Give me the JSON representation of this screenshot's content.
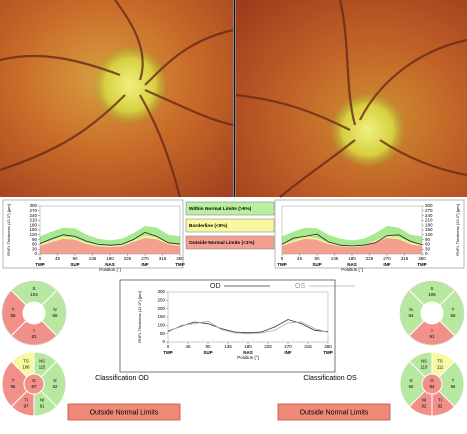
{
  "chart_data": [
    {
      "type": "line",
      "ylabel": "RNFL Thickness (12.0°) [µm]",
      "xlabel": "Position [°]",
      "x": [
        0,
        30,
        60,
        90,
        120,
        150,
        180,
        210,
        240,
        270,
        300,
        330,
        360
      ],
      "xlim": [
        0,
        360
      ],
      "xticks": [
        0,
        45,
        90,
        135,
        180,
        225,
        270,
        315,
        360
      ],
      "xregions": [
        {
          "value": 0,
          "label": "TMP"
        },
        {
          "value": 90,
          "label": "SUP"
        },
        {
          "value": 180,
          "label": "NAS"
        },
        {
          "value": 270,
          "label": "INF"
        },
        {
          "value": 360,
          "label": "TMP"
        }
      ],
      "ylim": [
        0,
        300
      ],
      "yticks": [
        0,
        30,
        60,
        90,
        120,
        150,
        180,
        210,
        240,
        270,
        300
      ],
      "norm": {
        "p95": [
          110,
          140,
          165,
          160,
          120,
          95,
          85,
          95,
          130,
          175,
          165,
          120,
          110
        ],
        "p5": [
          60,
          85,
          110,
          100,
          70,
          55,
          50,
          55,
          85,
          115,
          105,
          70,
          60
        ],
        "p1": [
          50,
          75,
          95,
          88,
          62,
          48,
          42,
          48,
          75,
          100,
          92,
          60,
          50
        ]
      },
      "series": [
        {
          "color": "#222222",
          "values": [
            65,
            95,
            120,
            110,
            80,
            60,
            55,
            60,
            90,
            135,
            110,
            70,
            62
          ]
        }
      ]
    },
    {
      "type": "line",
      "ylabel": "RNFL Thickness (12.0°) [µm]",
      "xlabel": "Position [°]",
      "x": [
        0,
        30,
        60,
        90,
        120,
        150,
        180,
        210,
        240,
        270,
        300,
        330,
        360
      ],
      "xlim": [
        0,
        360
      ],
      "xticks": [
        0,
        45,
        90,
        135,
        180,
        225,
        270,
        315,
        360
      ],
      "xregions": [
        {
          "value": 0,
          "label": "TMP"
        },
        {
          "value": 90,
          "label": "SUP"
        },
        {
          "value": 180,
          "label": "NAS"
        },
        {
          "value": 270,
          "label": "INF"
        },
        {
          "value": 360,
          "label": "TMP"
        }
      ],
      "ylim": [
        0,
        300
      ],
      "yticks": [
        0,
        30,
        60,
        90,
        120,
        150,
        180,
        210,
        240,
        270,
        300
      ],
      "norm": {
        "p95": [
          110,
          140,
          165,
          160,
          120,
          95,
          85,
          95,
          130,
          175,
          165,
          120,
          110
        ],
        "p5": [
          60,
          85,
          110,
          100,
          70,
          55,
          50,
          55,
          85,
          115,
          105,
          70,
          60
        ],
        "p1": [
          50,
          75,
          95,
          88,
          62,
          48,
          42,
          48,
          75,
          100,
          92,
          60,
          50
        ]
      },
      "series": [
        {
          "color": "#222222",
          "values": [
            60,
            100,
            110,
            125,
            75,
            55,
            50,
            55,
            70,
            115,
            120,
            80,
            58
          ]
        }
      ]
    },
    {
      "type": "line",
      "ylabel": "RNFL Thickness (12.0°) [µm]",
      "xlabel": "Position [°]",
      "x": [
        0,
        30,
        60,
        90,
        120,
        150,
        180,
        210,
        240,
        270,
        300,
        330,
        360
      ],
      "xlim": [
        0,
        360
      ],
      "xticks": [
        0,
        45,
        90,
        135,
        180,
        225,
        270,
        315,
        360
      ],
      "xregions": [
        {
          "value": 0,
          "label": "TMP"
        },
        {
          "value": 90,
          "label": "SUP"
        },
        {
          "value": 180,
          "label": "NAS"
        },
        {
          "value": 270,
          "label": "INF"
        },
        {
          "value": 360,
          "label": "TMP"
        }
      ],
      "ylim": [
        0,
        300
      ],
      "yticks": [
        0,
        50,
        100,
        150,
        200,
        250,
        300
      ],
      "series": [
        {
          "name": "OD",
          "color": "#333333",
          "values": [
            65,
            95,
            120,
            110,
            80,
            60,
            55,
            60,
            90,
            135,
            110,
            70,
            62
          ]
        },
        {
          "name": "OS",
          "color": "#aaaaaa",
          "values": [
            60,
            100,
            110,
            125,
            75,
            55,
            50,
            55,
            70,
            115,
            120,
            80,
            58
          ]
        }
      ]
    }
  ],
  "legend": [
    {
      "label": "Within Normal Limits (>5%)",
      "color": "#b8f0a0"
    },
    {
      "label": "Borderline (<5%)",
      "color": "#f8f8a0"
    },
    {
      "label": "Outside Normal Limits (<1%)",
      "color": "#f4a090"
    }
  ],
  "od_quadrants": [
    {
      "label": "S",
      "value": 104,
      "color": "#b8e8a0"
    },
    {
      "label": "N",
      "value": 66,
      "color": "#b8e8a0"
    },
    {
      "label": "I",
      "value": 81,
      "color": "#f09088"
    },
    {
      "label": "T",
      "value": 55,
      "color": "#f09088"
    }
  ],
  "os_quadrants": [
    {
      "label": "S",
      "value": 105,
      "color": "#b8e8a0"
    },
    {
      "label": "T",
      "value": 56,
      "color": "#b8e8a0"
    },
    {
      "label": "I",
      "value": 91,
      "color": "#f09088"
    },
    {
      "label": "N",
      "value": 64,
      "color": "#b8e8a0"
    }
  ],
  "od_sectors": {
    "center": {
      "label": "G",
      "value": 87,
      "color": "#f09088"
    },
    "sectors": [
      {
        "label": "NS",
        "value": 115,
        "color": "#b8e8a0"
      },
      {
        "label": "N",
        "value": 62,
        "color": "#b8e8a0"
      },
      {
        "label": "NI",
        "value": 91,
        "color": "#b8e8a0"
      },
      {
        "label": "TI",
        "value": 97,
        "color": "#f09088"
      },
      {
        "label": "T",
        "value": 55,
        "color": "#f09088"
      },
      {
        "label": "TS",
        "value": 106,
        "color": "#f8f8a0"
      }
    ]
  },
  "os_sectors": {
    "center": {
      "label": "G",
      "value": 84,
      "color": "#f09088"
    },
    "sectors": [
      {
        "label": "NS",
        "value": 110,
        "color": "#b8e8a0"
      },
      {
        "label": "N",
        "value": 60,
        "color": "#b8e8a0"
      },
      {
        "label": "NI",
        "value": 82,
        "color": "#f09088"
      },
      {
        "label": "TI",
        "value": 92,
        "color": "#f09088"
      },
      {
        "label": "T",
        "value": 56,
        "color": "#b8e8a0"
      },
      {
        "label": "TS",
        "value": 111,
        "color": "#f8f8a0"
      }
    ]
  },
  "classification_od": {
    "title": "Classification OD",
    "result": "Outside Normal Limits"
  },
  "classification_os": {
    "title": "Classification OS",
    "result": "Outside Normal Limits"
  }
}
